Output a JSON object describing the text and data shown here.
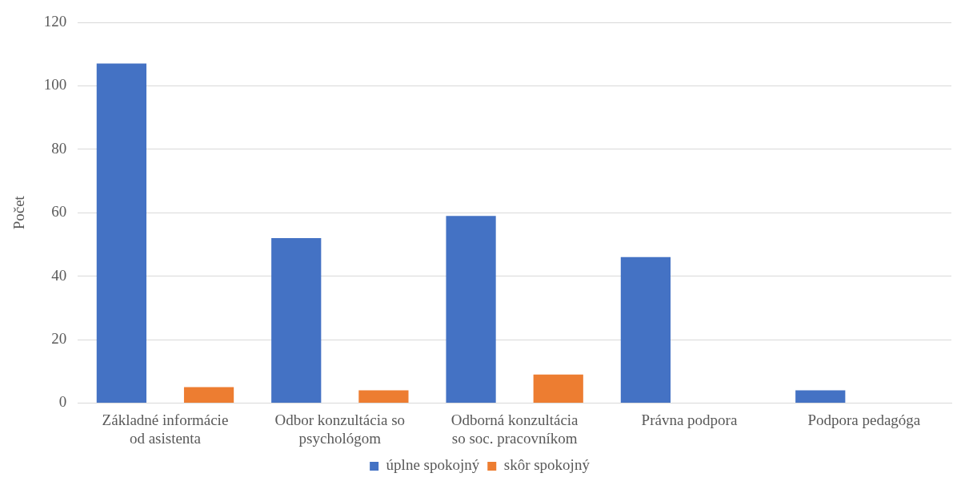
{
  "chart_data": {
    "type": "bar",
    "ylabel": "Počet",
    "categories": [
      [
        "Základné informácie",
        "od asistenta"
      ],
      [
        "Odbor konzultácia so",
        "psychológom"
      ],
      [
        "Odborná konzultácia",
        "so soc. pracovníkom"
      ],
      "Právna podpora",
      "Podpora pedagóga"
    ],
    "series": [
      {
        "name": "úplne spokojný",
        "color": "#4472c4",
        "values": [
          107,
          52,
          59,
          46,
          4
        ]
      },
      {
        "name": "skôr spokojný",
        "color": "#ed7d31",
        "values": [
          5,
          4,
          9,
          0,
          0
        ]
      }
    ],
    "ylim": [
      0,
      120
    ],
    "yticks": [
      0,
      20,
      40,
      60,
      80,
      100,
      120
    ],
    "grid": "y",
    "legend": "bottom"
  }
}
